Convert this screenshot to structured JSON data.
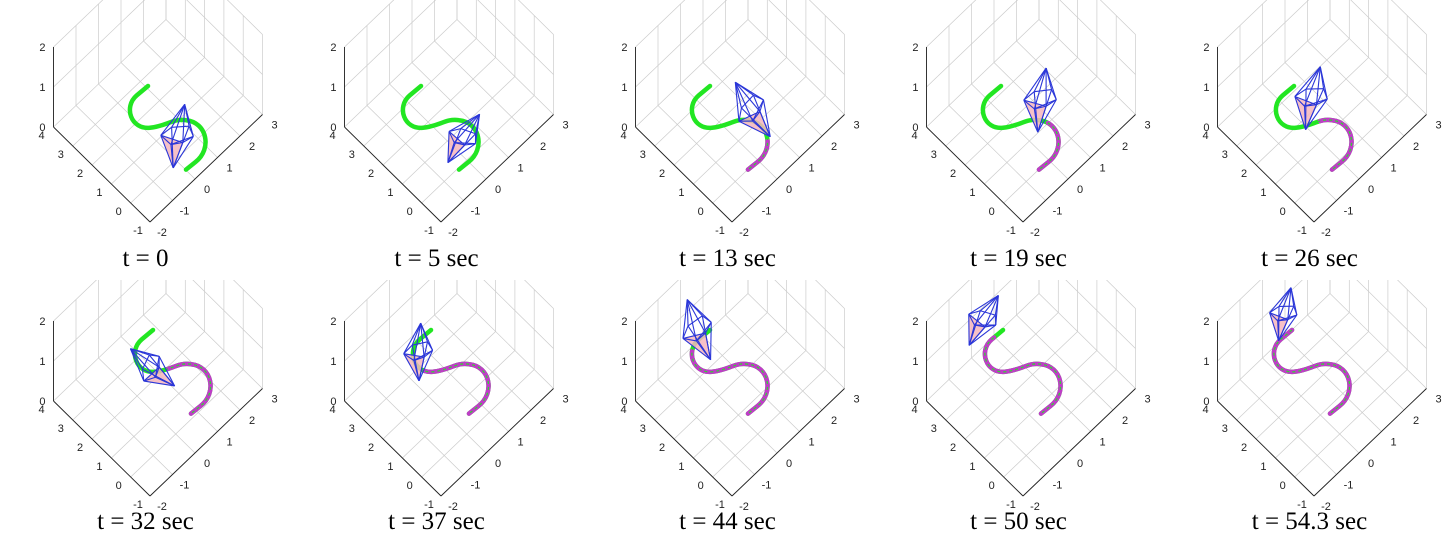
{
  "figure": {
    "axis_ticks": {
      "z": [
        "0",
        "1",
        "2"
      ],
      "left": [
        "4",
        "3",
        "2",
        "1",
        "0",
        "-1"
      ],
      "right": [
        "3",
        "2",
        "1",
        "0",
        "-1",
        "-2"
      ]
    },
    "colors": {
      "reference_path": "#22e622",
      "traversed_path": "#c03cc8",
      "robot_edges": "#2a36d8",
      "robot_face": "#f4b6bd",
      "grid": "#cccccc"
    },
    "panels": [
      {
        "caption": "t = 0",
        "progress": 0.0
      },
      {
        "caption": "t = 5 sec",
        "progress": 0.0
      },
      {
        "caption": "t = 13 sec",
        "progress": 0.22
      },
      {
        "caption": "t = 19 sec",
        "progress": 0.35
      },
      {
        "caption": "t = 26 sec",
        "progress": 0.48
      },
      {
        "caption": "t = 32 sec",
        "progress": 0.55
      },
      {
        "caption": "t = 37 sec",
        "progress": 0.68
      },
      {
        "caption": "t = 44 sec",
        "progress": 0.83
      },
      {
        "caption": "t = 50 sec",
        "progress": 0.93
      },
      {
        "caption": "t = 54.3 sec",
        "progress": 1.0
      }
    ]
  }
}
